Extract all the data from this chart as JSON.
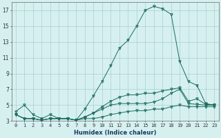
{
  "title": "",
  "xlabel": "Humidex (Indice chaleur)",
  "x": [
    0,
    1,
    2,
    3,
    4,
    5,
    6,
    7,
    8,
    9,
    10,
    11,
    12,
    13,
    14,
    15,
    16,
    17,
    18,
    19,
    20,
    21,
    22,
    23
  ],
  "series": [
    [
      4.2,
      5.0,
      3.8,
      3.3,
      3.8,
      3.3,
      3.3,
      3.1,
      3.3,
      3.3,
      3.5,
      3.8,
      4.0,
      4.2,
      4.3,
      4.3,
      4.5,
      4.5,
      4.8,
      5.0,
      4.8,
      4.8,
      4.8,
      4.8
    ],
    [
      3.8,
      3.3,
      3.3,
      3.1,
      3.3,
      3.3,
      3.3,
      3.1,
      3.5,
      4.0,
      4.5,
      5.0,
      5.2,
      5.2,
      5.2,
      5.2,
      5.4,
      5.8,
      6.5,
      7.0,
      5.2,
      5.1,
      5.0,
      5.0
    ],
    [
      3.8,
      3.3,
      3.3,
      3.1,
      3.3,
      3.3,
      3.3,
      3.1,
      4.5,
      6.2,
      8.0,
      10.0,
      12.2,
      13.2,
      15.0,
      17.0,
      17.5,
      17.2,
      16.5,
      10.5,
      8.0,
      7.5,
      5.2,
      5.0
    ],
    [
      3.8,
      3.3,
      3.3,
      3.1,
      3.3,
      3.3,
      3.3,
      3.1,
      3.5,
      4.0,
      4.8,
      5.5,
      6.0,
      6.3,
      6.3,
      6.5,
      6.5,
      6.8,
      7.0,
      7.2,
      5.5,
      5.8,
      5.1,
      5.0
    ]
  ],
  "line_color": "#1a6b5a",
  "bg_color": "#d6f0f0",
  "grid_color": "#a8d0d0",
  "ylim": [
    3,
    18
  ],
  "yticks": [
    3,
    5,
    7,
    9,
    11,
    13,
    15,
    17
  ],
  "xlim": [
    -0.5,
    23.5
  ],
  "xticks": [
    0,
    1,
    2,
    3,
    4,
    5,
    6,
    7,
    8,
    9,
    10,
    11,
    12,
    13,
    14,
    15,
    16,
    17,
    18,
    19,
    20,
    21,
    22,
    23
  ],
  "xlabel_fontsize": 6.0,
  "tick_fontsize": 5.0
}
